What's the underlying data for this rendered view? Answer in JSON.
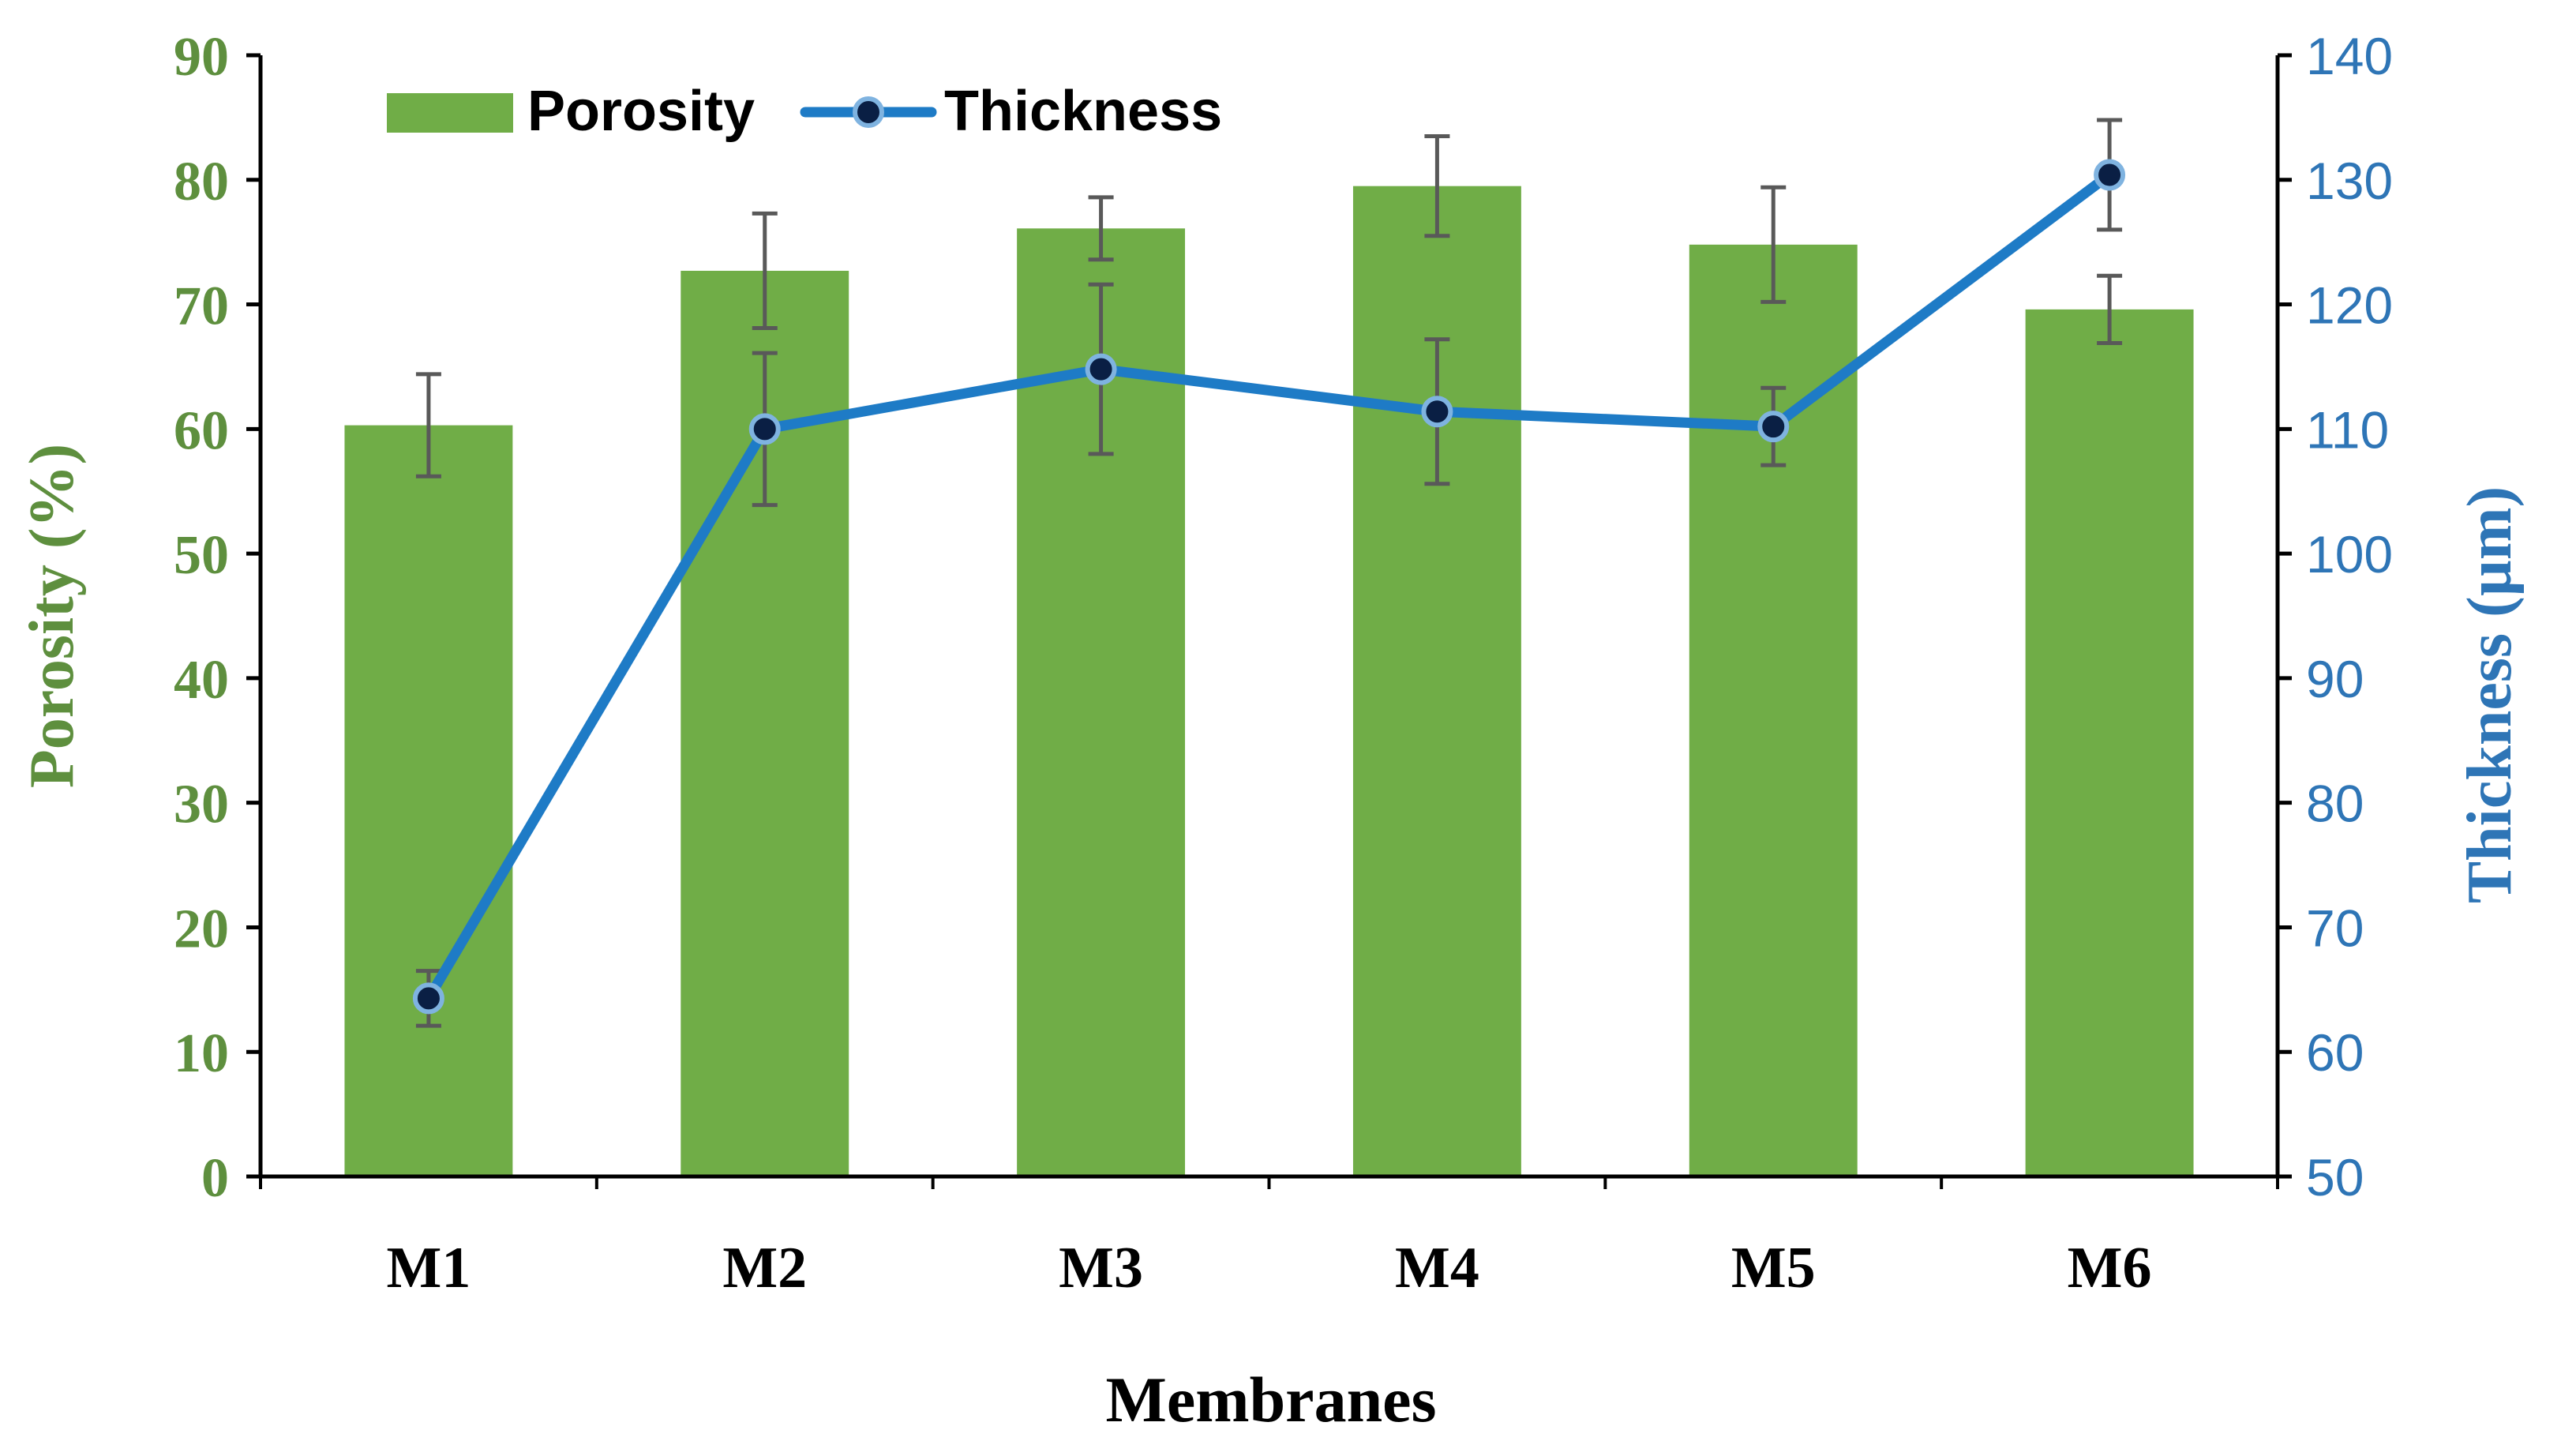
{
  "chart_data": {
    "type": "bar",
    "title": "",
    "categories": [
      "M1",
      "M2",
      "M3",
      "M4",
      "M5",
      "M6"
    ],
    "xlabel": "Membranes",
    "ylabel": "Porosity (%)",
    "y2label": "Thickness (µm)",
    "ylim": [
      0,
      90
    ],
    "y2lim": [
      50,
      140
    ],
    "yticks": [
      "0",
      "10",
      "20",
      "30",
      "40",
      "50",
      "60",
      "70",
      "80",
      "90"
    ],
    "y2ticks": [
      "50",
      "60",
      "70",
      "80",
      "90",
      "100",
      "110",
      "120",
      "130",
      "140"
    ],
    "legend_position": "top-left",
    "series": [
      {
        "name": "Porosity",
        "type": "bar",
        "axis": "left",
        "values": [
          60.3,
          72.7,
          76.1,
          79.5,
          74.8,
          69.6
        ],
        "errors": [
          4.1,
          4.6,
          2.5,
          4.0,
          4.6,
          2.7
        ]
      },
      {
        "name": "Thickness",
        "type": "line",
        "axis": "right",
        "values": [
          64.3,
          110.0,
          114.8,
          111.4,
          110.2,
          130.4
        ],
        "errors": [
          2.2,
          6.1,
          6.8,
          5.8,
          3.1,
          4.4
        ]
      }
    ],
    "colors": {
      "bar": "#70AD47",
      "left_axis_text": "#5E8F3E",
      "line": "#1E7BC6",
      "marker_fill": "#0A1F44",
      "marker_edge": "#7FB3E0",
      "right_axis_text": "#2E75B6",
      "error_bar": "#595959",
      "axis": "#000000",
      "category_text": "#000000"
    }
  }
}
